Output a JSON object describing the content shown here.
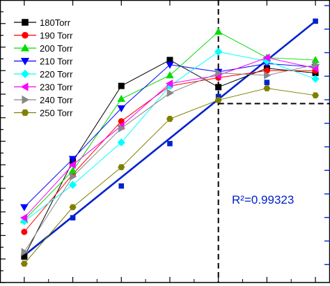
{
  "chart_data": {
    "type": "line",
    "title": "",
    "xlabel": "",
    "ylabel": "",
    "x": [
      1,
      2,
      3,
      4,
      5,
      6,
      7
    ],
    "xlim": [
      0.5,
      7.3
    ],
    "ylim": [
      0,
      24
    ],
    "grid": false,
    "legend": "top-left",
    "series": [
      {
        "name": "180Torr",
        "color": "#000000",
        "marker": "square",
        "values": [
          2.2,
          10.3,
          16.7,
          18.9,
          16.6,
          18.2,
          17.8
        ]
      },
      {
        "name": "190 Torr",
        "color": "#ff0000",
        "marker": "circle",
        "values": [
          4.3,
          9.2,
          13.7,
          16.7,
          17.4,
          18.0,
          18.0
        ]
      },
      {
        "name": "200 Torr",
        "color": "#00dd00",
        "marker": "triangle-up",
        "values": [
          5.3,
          9.5,
          15.6,
          17.6,
          21.3,
          19.1,
          18.9
        ]
      },
      {
        "name": "210 Torr",
        "color": "#0000ff",
        "marker": "triangle-down",
        "values": [
          6.4,
          10.5,
          14.8,
          18.5,
          17.9,
          18.6,
          18.3
        ]
      },
      {
        "name": "220 Torr",
        "color": "#00ffff",
        "marker": "diamond",
        "values": [
          5.2,
          8.3,
          11.9,
          16.7,
          19.6,
          18.8,
          17.3
        ]
      },
      {
        "name": "230 Torr",
        "color": "#ff00ff",
        "marker": "triangle-left",
        "values": [
          5.5,
          10.0,
          13.3,
          16.9,
          17.6,
          19.1,
          18.2
        ]
      },
      {
        "name": "240 Torr",
        "color": "#888888",
        "marker": "triangle-right",
        "values": [
          2.6,
          9.0,
          13.1,
          16.1,
          17.8,
          17.6,
          18.5
        ]
      },
      {
        "name": "250 Torr",
        "color": "#808000",
        "marker": "hexagon",
        "values": [
          1.6,
          6.4,
          9.8,
          13.9,
          15.5,
          16.5,
          15.9
        ]
      }
    ],
    "fit": {
      "color": "#0022cc",
      "x": [
        1,
        2,
        3,
        4,
        5,
        6,
        7
      ],
      "values": [
        2.3,
        5.5,
        8.2,
        11.8,
        15.8,
        17.0,
        22.2
      ],
      "line": [
        [
          1,
          2.3
        ],
        [
          7,
          22.2
        ]
      ],
      "annotation": "R²=0.99323"
    },
    "guides": {
      "vertical_x": 5,
      "horizontal_y": 15.2
    }
  }
}
